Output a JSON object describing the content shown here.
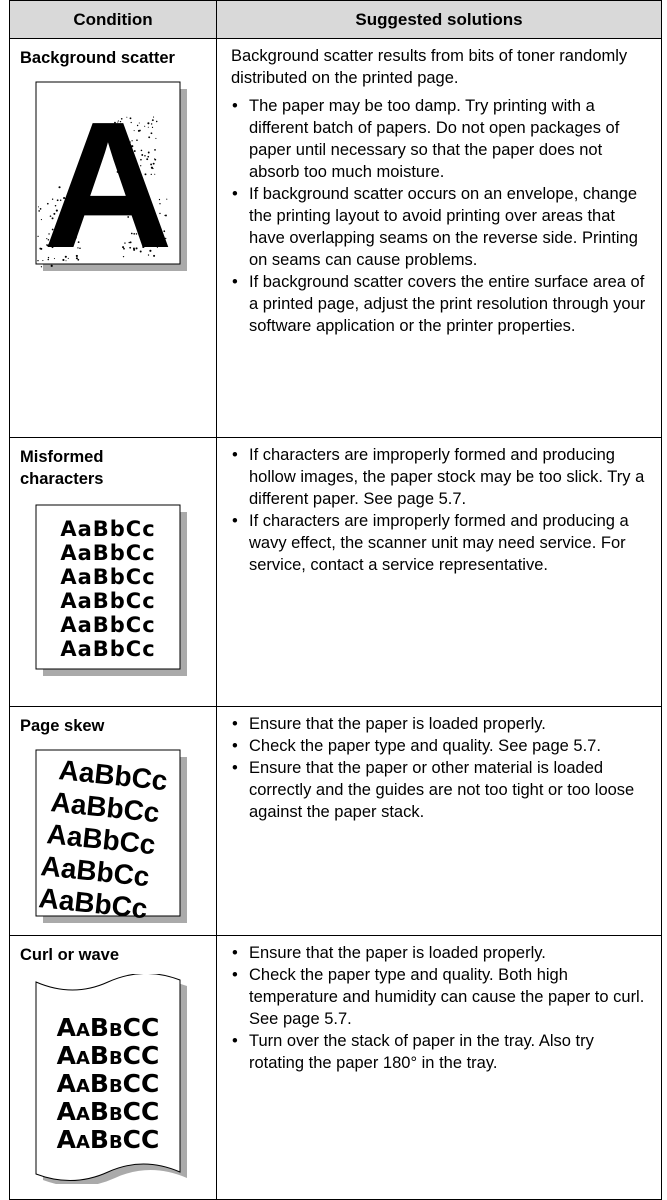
{
  "table": {
    "headers": [
      "Condition",
      "Suggested solutions"
    ],
    "rows": [
      {
        "condition": "Background scatter",
        "sample": [
          "A"
        ],
        "intro": "Background scatter results from bits of toner randomly distributed on the printed page.",
        "bullets": [
          "The paper may be too damp. Try printing with a different batch of papers. Do not open packages of paper until necessary so that the paper does not absorb too much moisture.",
          "If background scatter occurs on an envelope, change the printing layout to avoid printing over areas that have overlapping seams on the reverse side. Printing on seams can cause problems.",
          "If background scatter covers the entire surface area of a printed page, adjust the print resolution through your software application or the printer properties."
        ]
      },
      {
        "condition": "Misformed characters",
        "sample": [
          "AaBbCc",
          "AaBbCc",
          "AaBbCc",
          "AaBbCc",
          "AaBbCc",
          "AaBbCc"
        ],
        "bullets": [
          "If characters are improperly formed and producing hollow images, the paper stock may be too slick. Try a different paper. See page 5.7.",
          "If characters are improperly formed and producing a wavy effect, the scanner unit may need service. For service, contact a service representative."
        ]
      },
      {
        "condition": "Page skew",
        "sample": [
          "AaBbCc",
          "AaBbCc",
          "AaBbCc",
          "AaBbCc",
          "AaBbCc"
        ],
        "bullets": [
          "Ensure that the paper is loaded properly.",
          "Check the paper type and quality. See page 5.7.",
          "Ensure that the paper or other material is loaded correctly and the guides are not too tight or too loose against the paper stack."
        ]
      },
      {
        "condition": "Curl or wave",
        "sample": [
          "AaBbCC",
          "AaBbCC",
          "AaBbCC",
          "AaBbCC",
          "AaBbCC"
        ],
        "bullets": [
          "Ensure that the paper is loaded properly.",
          "Check the paper type and quality. Both high temperature and humidity can cause the paper to curl. See page 5.7.",
          "Turn over the stack of paper in the tray. Also try rotating the paper 180° in the tray."
        ]
      }
    ]
  }
}
